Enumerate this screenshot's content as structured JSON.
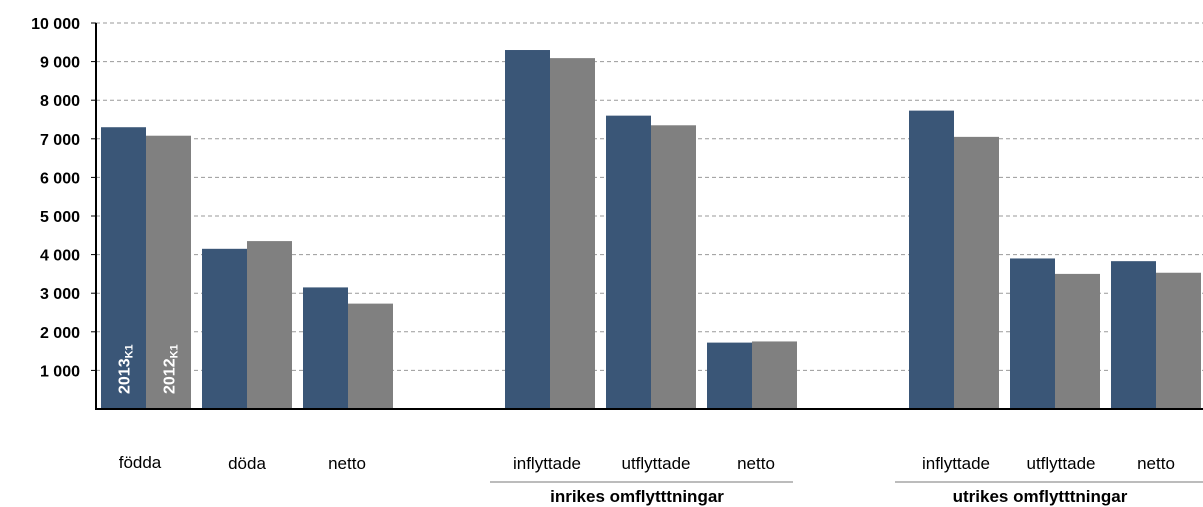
{
  "chart_data": {
    "type": "bar",
    "categories": [
      "födda",
      "döda",
      "netto",
      "inflyttade",
      "utflyttade",
      "netto",
      "inflyttade",
      "utflyttade",
      "netto"
    ],
    "groups": [
      {
        "label": "",
        "categories": [
          0,
          1,
          2
        ]
      },
      {
        "label": "inrikes omflytttningar",
        "categories": [
          3,
          4,
          5
        ]
      },
      {
        "label": "utrikes omflytttningar",
        "categories": [
          6,
          7,
          8
        ]
      }
    ],
    "series": [
      {
        "name": "2013",
        "subscript": "K1",
        "color": "#3a5677",
        "values": [
          7300,
          4150,
          3150,
          9300,
          7600,
          1720,
          7730,
          3900,
          3830
        ]
      },
      {
        "name": "2012",
        "subscript": "K1",
        "color": "#808080",
        "values": [
          7080,
          4350,
          2730,
          9090,
          7350,
          1750,
          7050,
          3500,
          3530
        ]
      }
    ],
    "yticks": [
      "1 000",
      "2 000",
      "3 000",
      "4 000",
      "5 000",
      "6 000",
      "7 000",
      "8 000",
      "9 000",
      "10 000"
    ],
    "ylim": [
      0,
      10000
    ],
    "grid": true,
    "grid_style": "dashed"
  }
}
